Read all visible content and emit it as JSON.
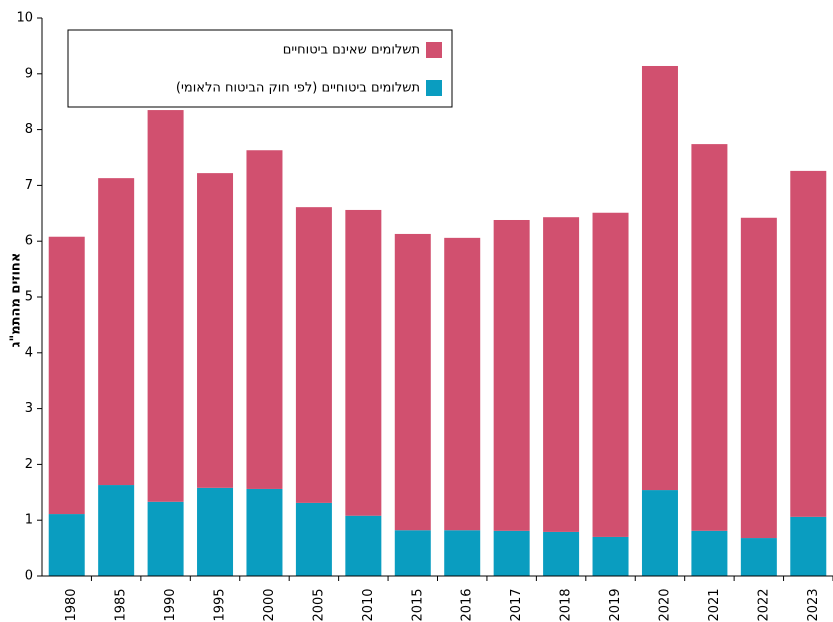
{
  "chart_data": {
    "type": "stacked-bar",
    "y_label": "אחוזים מהתמ\"ג",
    "categories": [
      "1980",
      "1985",
      "1990",
      "1995",
      "2000",
      "2005",
      "2010",
      "2015",
      "2016",
      "2017",
      "2018",
      "2019",
      "2020",
      "2021",
      "2022",
      "2023"
    ],
    "series": [
      {
        "name": "תשלומים ביטוחיים (לפי חוק הביטוח הלאומי)",
        "color": "#0a9dc0",
        "values": [
          1.11,
          1.63,
          1.33,
          1.58,
          1.56,
          1.31,
          1.08,
          0.82,
          0.82,
          0.81,
          0.79,
          0.7,
          1.54,
          0.81,
          0.68,
          1.06
        ]
      },
      {
        "name": "תשלומים שאינם ביטוחיים",
        "color": "#d1506f",
        "values": [
          4.97,
          5.5,
          7.02,
          5.64,
          6.07,
          5.3,
          5.48,
          5.31,
          5.24,
          5.57,
          5.64,
          5.81,
          7.6,
          6.93,
          5.74,
          6.2
        ]
      }
    ],
    "ylim": [
      0,
      10
    ],
    "yticks": [
      0,
      1,
      2,
      3,
      4,
      5,
      6,
      7,
      8,
      9,
      10
    ]
  }
}
